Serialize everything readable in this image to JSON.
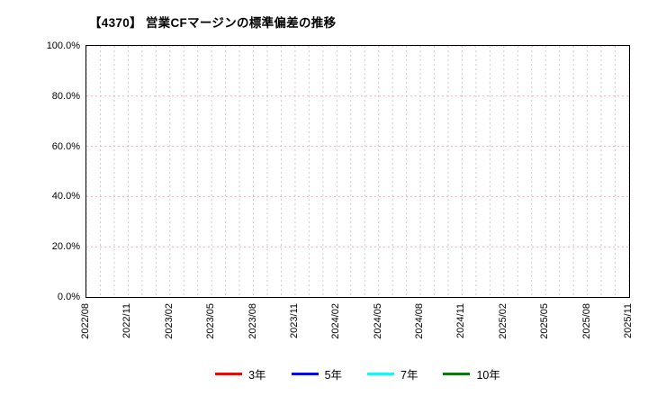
{
  "chart_data": {
    "type": "line",
    "title": "【4370】 営業CFマージンの標準偏差の推移",
    "months_total": 40,
    "label_every_n_months": 3,
    "x_tick_labels": [
      "2022/08",
      "2022/11",
      "2023/02",
      "2023/05",
      "2023/08",
      "2023/11",
      "2024/02",
      "2024/05",
      "2024/08",
      "2024/11",
      "2025/02",
      "2025/05",
      "2025/08",
      "2025/11"
    ],
    "y_ticks": [
      "100.0%",
      "80.0%",
      "60.0%",
      "40.0%",
      "20.0%",
      "0.0%"
    ],
    "ylim": [
      0,
      100
    ],
    "grid": true,
    "legend_position": "bottom",
    "series": [
      {
        "name": "3年",
        "color": "#ff0000",
        "values": []
      },
      {
        "name": "5年",
        "color": "#0000ff",
        "values": []
      },
      {
        "name": "7年",
        "color": "#00ffff",
        "values": []
      },
      {
        "name": "10年",
        "color": "#008000",
        "values": []
      }
    ]
  }
}
